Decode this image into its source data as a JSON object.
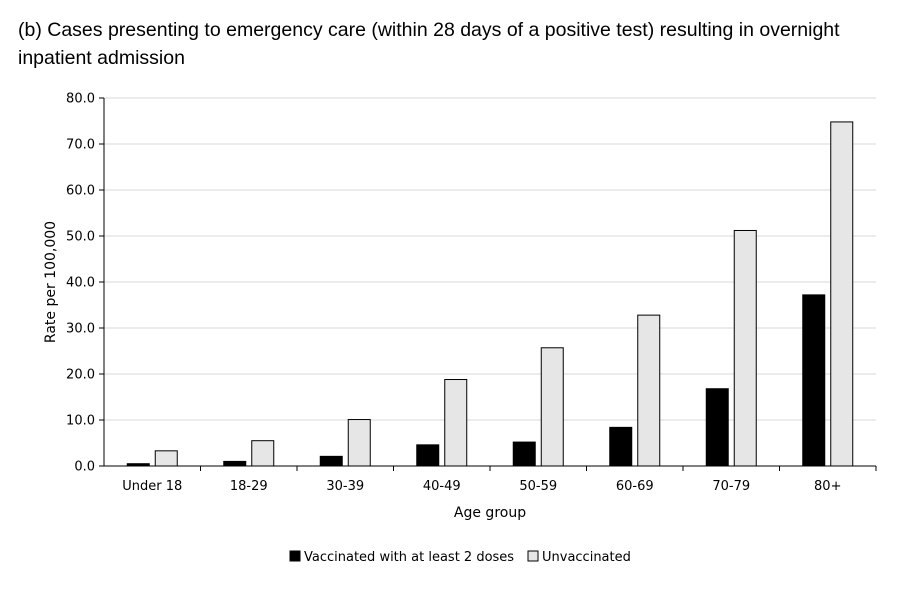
{
  "chart_data": {
    "type": "bar",
    "title": "(b) Cases presenting to emergency care (within 28 days of a positive test) resulting in overnight inpatient admission",
    "xlabel": "Age group",
    "ylabel": "Rate per 100,000",
    "ylim": [
      0,
      80
    ],
    "yticks": [
      "0.0",
      "10.0",
      "20.0",
      "30.0",
      "40.0",
      "50.0",
      "60.0",
      "70.0",
      "80.0"
    ],
    "grid": true,
    "legend_position": "bottom",
    "categories": [
      "Under 18",
      "18-29",
      "30-39",
      "40-49",
      "50-59",
      "60-69",
      "70-79",
      "80+"
    ],
    "series": [
      {
        "name": "Vaccinated with at least 2 doses",
        "color": "#000000",
        "values": [
          0.5,
          1.0,
          2.1,
          4.6,
          5.2,
          8.4,
          16.8,
          37.2
        ]
      },
      {
        "name": "Unvaccinated",
        "color": "#e6e6e6",
        "values": [
          3.3,
          5.5,
          10.1,
          18.8,
          25.7,
          32.8,
          51.2,
          74.8
        ]
      }
    ]
  }
}
